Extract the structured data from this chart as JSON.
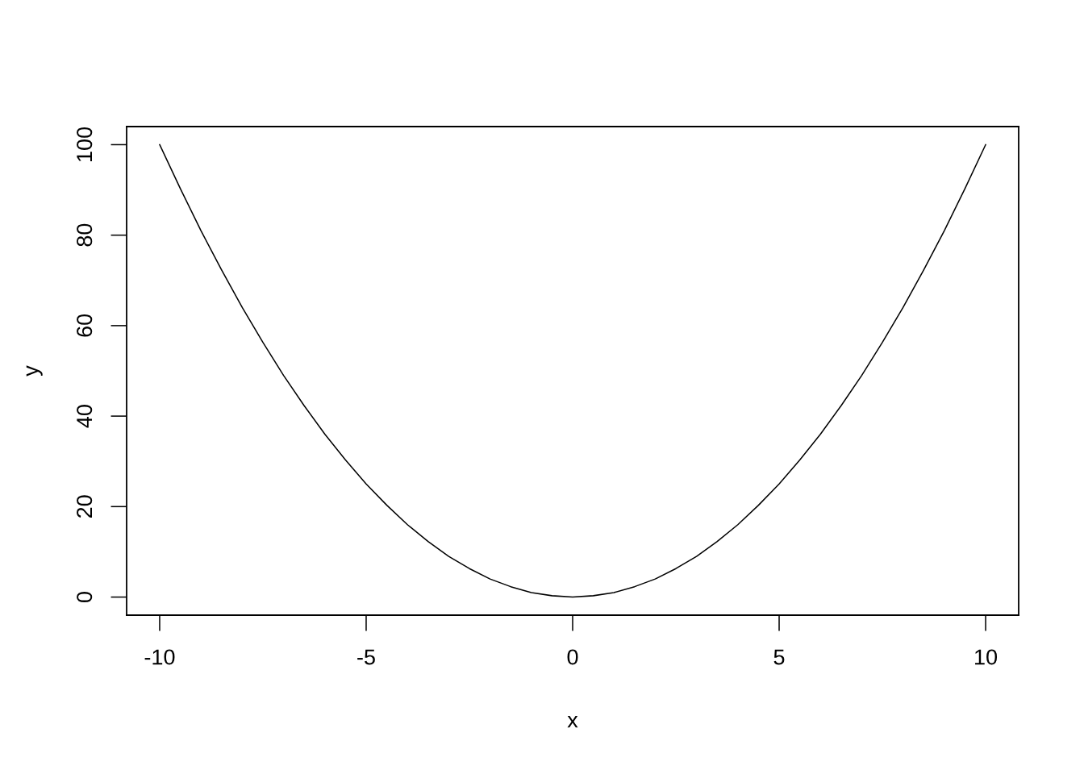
{
  "chart_data": {
    "type": "line",
    "xlabel": "x",
    "ylabel": "y",
    "x": [
      -10,
      -9.5,
      -9,
      -8.5,
      -8,
      -7.5,
      -7,
      -6.5,
      -6,
      -5.5,
      -5,
      -4.5,
      -4,
      -3.5,
      -3,
      -2.5,
      -2,
      -1.5,
      -1,
      -0.5,
      0,
      0.5,
      1,
      1.5,
      2,
      2.5,
      3,
      3.5,
      4,
      4.5,
      5,
      5.5,
      6,
      6.5,
      7,
      7.5,
      8,
      8.5,
      9,
      9.5,
      10
    ],
    "series": [
      {
        "color": "#000000",
        "values": [
          100,
          90.3,
          81,
          72.3,
          64,
          56.3,
          49,
          42.3,
          36,
          30.3,
          25,
          20.3,
          16,
          12.3,
          9,
          6.3,
          4,
          2.3,
          1,
          0.3,
          0,
          0.3,
          1,
          2.3,
          4,
          6.3,
          9,
          12.3,
          16,
          20.3,
          25,
          30.3,
          36,
          42.3,
          49,
          56.3,
          64,
          72.3,
          81,
          90.3,
          100
        ]
      }
    ],
    "xlim": [
      -10.8,
      10.8
    ],
    "ylim": [
      -4,
      104
    ],
    "xticks": [
      -10,
      -5,
      0,
      5,
      10
    ],
    "yticks": [
      0,
      20,
      40,
      60,
      80,
      100
    ],
    "marker": "none",
    "line_style": "solid"
  }
}
